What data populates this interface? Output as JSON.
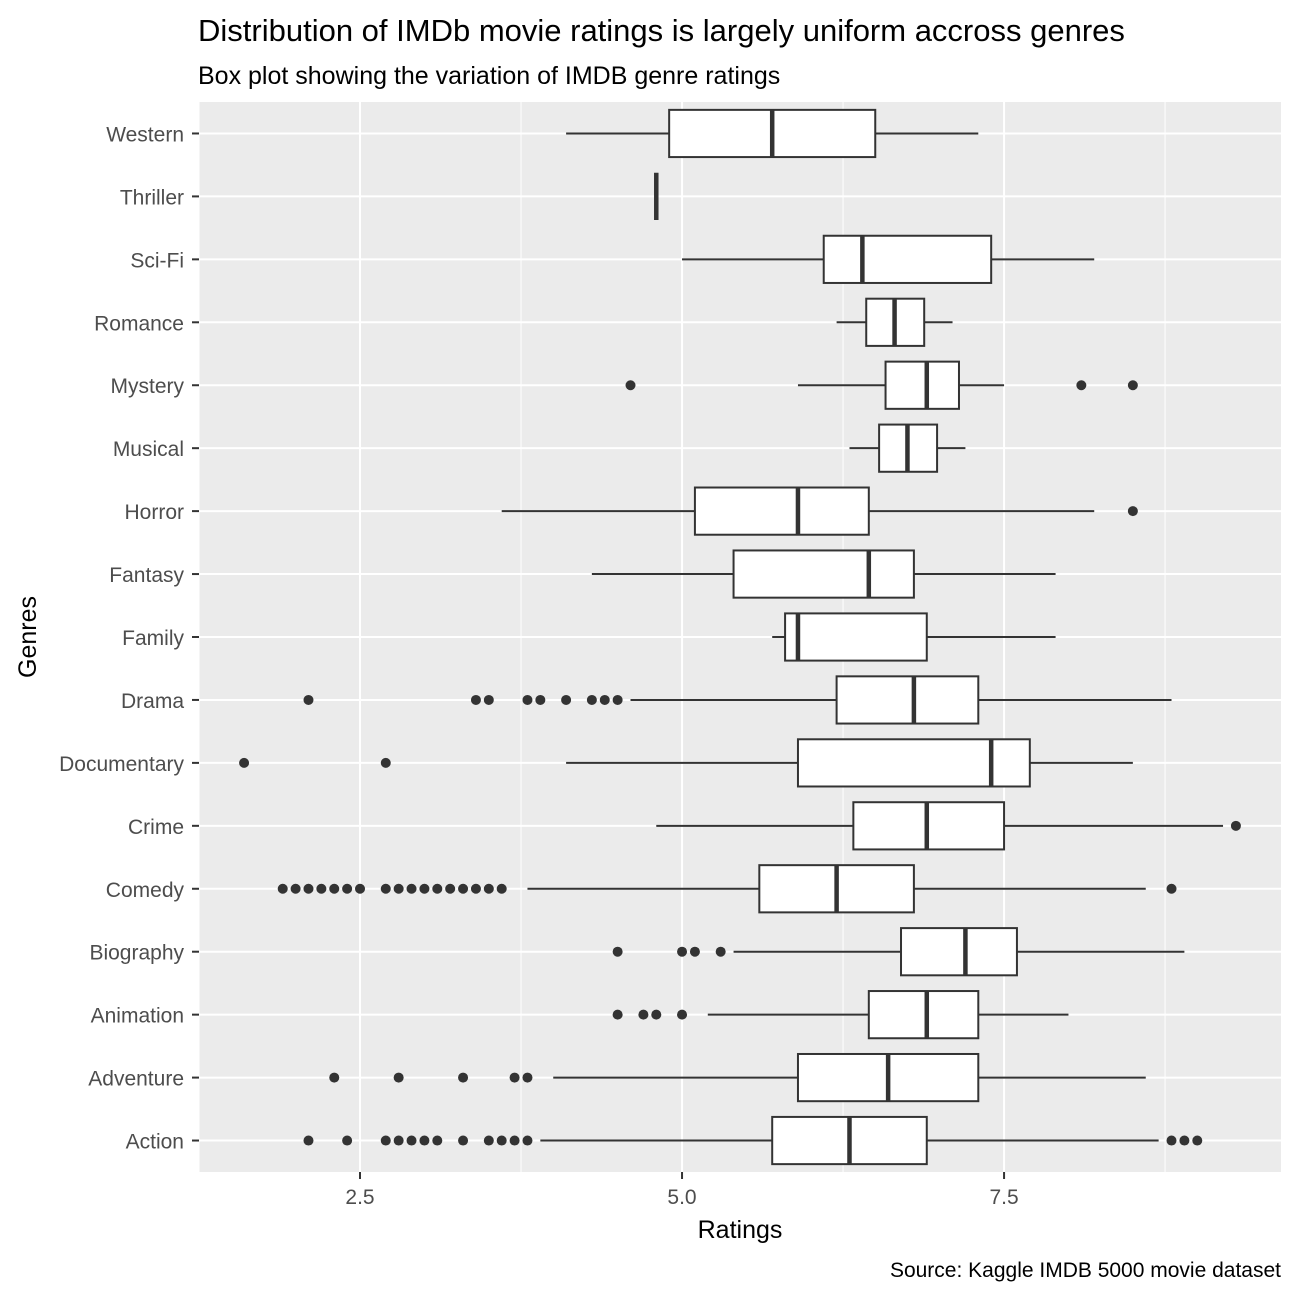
{
  "chart_data": {
    "type": "box",
    "orientation": "horizontal",
    "title": "Distribution of IMDb movie ratings is largely uniform accross genres",
    "subtitle": "Box plot showing the variation of IMDB genre ratings",
    "xlabel": "Ratings",
    "ylabel": "Genres",
    "caption": "Source: Kaggle IMDB 5000 movie dataset",
    "xlim": [
      1.25,
      9.65
    ],
    "x_ticks": [
      2.5,
      5.0,
      7.5
    ],
    "x_tick_labels": [
      "2.5",
      "5.0",
      "7.5"
    ],
    "grid": true,
    "legend": "none",
    "colors": {
      "panel_background": "#ebebeb",
      "grid": "#ffffff",
      "box_fill": "#ffffff",
      "line": "#333333"
    },
    "categories": [
      "Western",
      "Thriller",
      "Sci-Fi",
      "Romance",
      "Mystery",
      "Musical",
      "Horror",
      "Fantasy",
      "Family",
      "Drama",
      "Documentary",
      "Crime",
      "Comedy",
      "Biography",
      "Animation",
      "Adventure",
      "Action"
    ],
    "boxes": [
      {
        "genre": "Western",
        "whisker_low": 4.1,
        "q1": 4.9,
        "median": 5.7,
        "q3": 6.5,
        "whisker_high": 7.3,
        "outliers": []
      },
      {
        "genre": "Thriller",
        "whisker_low": 4.8,
        "q1": 4.8,
        "median": 4.8,
        "q3": 4.8,
        "whisker_high": 4.8,
        "outliers": []
      },
      {
        "genre": "Sci-Fi",
        "whisker_low": 5.0,
        "q1": 6.1,
        "median": 6.4,
        "q3": 7.4,
        "whisker_high": 8.2,
        "outliers": []
      },
      {
        "genre": "Romance",
        "whisker_low": 6.2,
        "q1": 6.43,
        "median": 6.65,
        "q3": 6.88,
        "whisker_high": 7.1,
        "outliers": []
      },
      {
        "genre": "Mystery",
        "whisker_low": 5.9,
        "q1": 6.58,
        "median": 6.9,
        "q3": 7.15,
        "whisker_high": 7.5,
        "outliers": [
          4.6,
          8.1,
          8.5
        ]
      },
      {
        "genre": "Musical",
        "whisker_low": 6.3,
        "q1": 6.53,
        "median": 6.75,
        "q3": 6.98,
        "whisker_high": 7.2,
        "outliers": []
      },
      {
        "genre": "Horror",
        "whisker_low": 3.6,
        "q1": 5.1,
        "median": 5.9,
        "q3": 6.45,
        "whisker_high": 8.2,
        "outliers": [
          8.5
        ]
      },
      {
        "genre": "Fantasy",
        "whisker_low": 4.3,
        "q1": 5.4,
        "median": 6.45,
        "q3": 6.8,
        "whisker_high": 7.9,
        "outliers": []
      },
      {
        "genre": "Family",
        "whisker_low": 5.7,
        "q1": 5.8,
        "median": 5.9,
        "q3": 6.9,
        "whisker_high": 7.9,
        "outliers": []
      },
      {
        "genre": "Drama",
        "whisker_low": 4.6,
        "q1": 6.2,
        "median": 6.8,
        "q3": 7.3,
        "whisker_high": 8.8,
        "outliers": [
          2.1,
          3.4,
          3.5,
          3.8,
          3.9,
          4.1,
          4.3,
          4.4,
          4.5
        ]
      },
      {
        "genre": "Documentary",
        "whisker_low": 4.1,
        "q1": 5.9,
        "median": 7.4,
        "q3": 7.7,
        "whisker_high": 8.5,
        "outliers": [
          1.6,
          2.7
        ]
      },
      {
        "genre": "Crime",
        "whisker_low": 4.8,
        "q1": 6.33,
        "median": 6.9,
        "q3": 7.5,
        "whisker_high": 9.2,
        "outliers": [
          9.3
        ]
      },
      {
        "genre": "Comedy",
        "whisker_low": 3.8,
        "q1": 5.6,
        "median": 6.2,
        "q3": 6.8,
        "whisker_high": 8.6,
        "outliers": [
          1.9,
          2.0,
          2.1,
          2.2,
          2.3,
          2.4,
          2.5,
          2.7,
          2.8,
          2.9,
          3.0,
          3.1,
          3.2,
          3.3,
          3.4,
          3.5,
          3.6,
          8.8
        ]
      },
      {
        "genre": "Biography",
        "whisker_low": 5.4,
        "q1": 6.7,
        "median": 7.2,
        "q3": 7.6,
        "whisker_high": 8.9,
        "outliers": [
          4.5,
          5.0,
          5.1,
          5.3
        ]
      },
      {
        "genre": "Animation",
        "whisker_low": 5.2,
        "q1": 6.45,
        "median": 6.9,
        "q3": 7.3,
        "whisker_high": 8.0,
        "outliers": [
          4.5,
          4.7,
          4.8,
          5.0
        ]
      },
      {
        "genre": "Adventure",
        "whisker_low": 4.0,
        "q1": 5.9,
        "median": 6.6,
        "q3": 7.3,
        "whisker_high": 8.6,
        "outliers": [
          2.3,
          2.8,
          3.3,
          3.7,
          3.8
        ]
      },
      {
        "genre": "Action",
        "whisker_low": 3.9,
        "q1": 5.7,
        "median": 6.3,
        "q3": 6.9,
        "whisker_high": 8.7,
        "outliers": [
          2.1,
          2.4,
          2.7,
          2.8,
          2.9,
          3.0,
          3.1,
          3.3,
          3.5,
          3.6,
          3.7,
          3.8,
          8.8,
          8.9,
          9.0
        ]
      }
    ]
  }
}
